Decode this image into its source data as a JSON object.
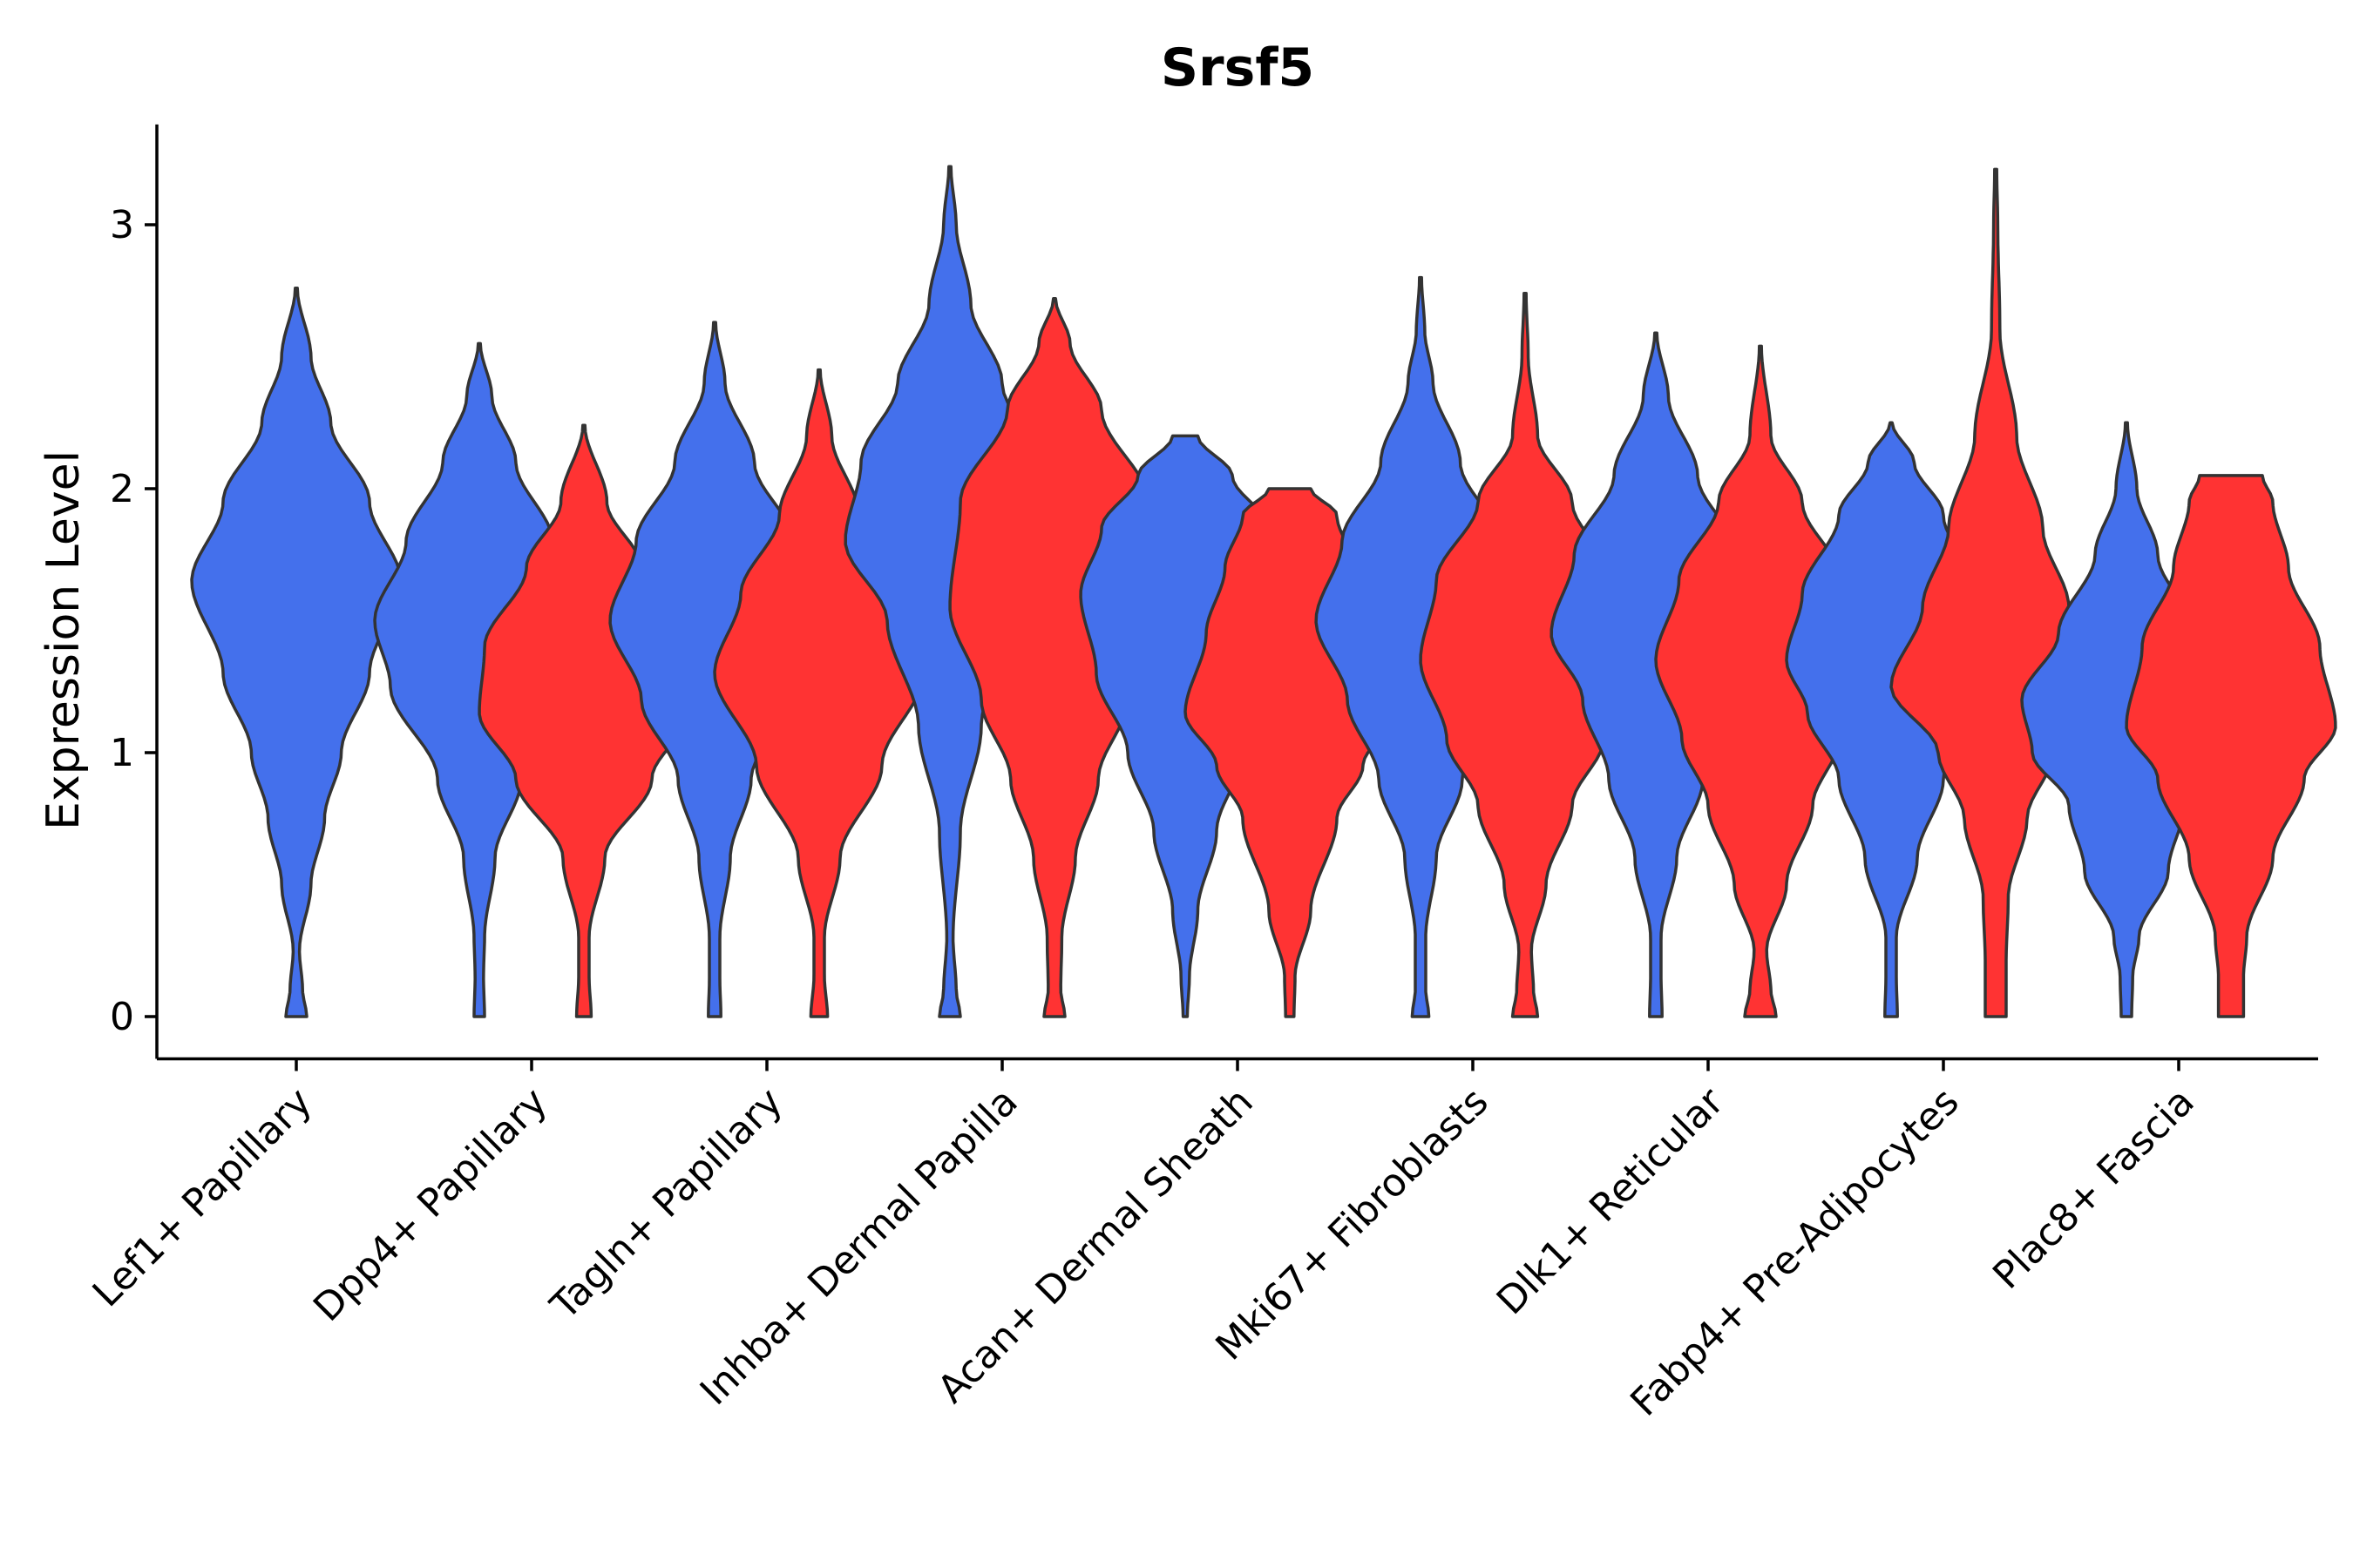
{
  "chart_data": {
    "type": "violin",
    "title": "Srsf5",
    "xlabel": "",
    "ylabel": "Expression Level",
    "ylim": [
      -0.16,
      3.38
    ],
    "yticks": [
      0,
      1,
      2,
      3
    ],
    "legend": "none",
    "grid": false,
    "colors": {
      "group_1": "#4470EC",
      "group_2": "#FF3333"
    },
    "categories": [
      "Lef1+ Papillary",
      "Dpp4+ Papillary",
      "Tagln+ Papillary",
      "Inhba+ Dermal Papilla",
      "Acan+ Dermal Sheath",
      "Mki67+ Fibroblasts",
      "Dlk1+ Reticular",
      "Fabp4+ Pre-Adipocytes",
      "Plac8+ Fascia"
    ],
    "violins": [
      {
        "category": "Lef1+ Papillary",
        "group": "group_1",
        "max": 2.76,
        "profile": [
          [
            0,
            0.1
          ],
          [
            0.1,
            0.06
          ],
          [
            0.25,
            0.03
          ],
          [
            0.5,
            0.14
          ],
          [
            0.75,
            0.27
          ],
          [
            1.0,
            0.43
          ],
          [
            1.3,
            0.7
          ],
          [
            1.65,
            1.0
          ],
          [
            1.95,
            0.7
          ],
          [
            2.25,
            0.33
          ],
          [
            2.5,
            0.14
          ],
          [
            2.76,
            0.01
          ]
        ]
      },
      {
        "category": "Dpp4+ Papillary",
        "group": "group_1",
        "max": 2.55,
        "profile": [
          [
            0,
            0.05
          ],
          [
            0.15,
            0.04
          ],
          [
            0.3,
            0.05
          ],
          [
            0.6,
            0.15
          ],
          [
            0.9,
            0.4
          ],
          [
            1.25,
            0.85
          ],
          [
            1.5,
            1.0
          ],
          [
            1.8,
            0.7
          ],
          [
            2.1,
            0.35
          ],
          [
            2.35,
            0.12
          ],
          [
            2.55,
            0.01
          ]
        ]
      },
      {
        "category": "Dpp4+ Papillary",
        "group": "group_2",
        "max": 2.24,
        "profile": [
          [
            0,
            0.07
          ],
          [
            0.15,
            0.05
          ],
          [
            0.3,
            0.05
          ],
          [
            0.6,
            0.2
          ],
          [
            0.9,
            0.65
          ],
          [
            1.15,
            1.0
          ],
          [
            1.4,
            0.95
          ],
          [
            1.7,
            0.55
          ],
          [
            1.95,
            0.22
          ],
          [
            2.24,
            0.01
          ]
        ]
      },
      {
        "category": "Tagln+ Papillary",
        "group": "group_1",
        "max": 2.63,
        "profile": [
          [
            0,
            0.06
          ],
          [
            0.15,
            0.05
          ],
          [
            0.3,
            0.05
          ],
          [
            0.6,
            0.15
          ],
          [
            0.9,
            0.35
          ],
          [
            1.2,
            0.7
          ],
          [
            1.5,
            1.0
          ],
          [
            1.8,
            0.75
          ],
          [
            2.1,
            0.38
          ],
          [
            2.4,
            0.1
          ],
          [
            2.63,
            0.01
          ]
        ]
      },
      {
        "category": "Tagln+ Papillary",
        "group": "group_2",
        "max": 2.45,
        "profile": [
          [
            0,
            0.08
          ],
          [
            0.15,
            0.05
          ],
          [
            0.3,
            0.05
          ],
          [
            0.6,
            0.2
          ],
          [
            0.95,
            0.6
          ],
          [
            1.3,
            1.0
          ],
          [
            1.6,
            0.75
          ],
          [
            1.9,
            0.38
          ],
          [
            2.2,
            0.12
          ],
          [
            2.45,
            0.01
          ]
        ]
      },
      {
        "category": "Inhba+ Dermal Papilla",
        "group": "group_1",
        "max": 3.22,
        "profile": [
          [
            0,
            0.1
          ],
          [
            0.1,
            0.06
          ],
          [
            0.3,
            0.03
          ],
          [
            0.7,
            0.1
          ],
          [
            1.1,
            0.3
          ],
          [
            1.5,
            0.6
          ],
          [
            1.8,
            1.0
          ],
          [
            2.1,
            0.85
          ],
          [
            2.4,
            0.5
          ],
          [
            2.7,
            0.2
          ],
          [
            3.0,
            0.06
          ],
          [
            3.22,
            0.01
          ]
        ]
      },
      {
        "category": "Inhba+ Dermal Papilla",
        "group": "group_2",
        "max": 2.72,
        "profile": [
          [
            0,
            0.1
          ],
          [
            0.1,
            0.06
          ],
          [
            0.3,
            0.07
          ],
          [
            0.6,
            0.2
          ],
          [
            0.9,
            0.42
          ],
          [
            1.2,
            0.7
          ],
          [
            1.55,
            1.0
          ],
          [
            1.95,
            0.9
          ],
          [
            2.3,
            0.45
          ],
          [
            2.55,
            0.15
          ],
          [
            2.72,
            0.01
          ]
        ]
      },
      {
        "category": "Acan+ Dermal Sheath",
        "group": "group_1",
        "max": 2.2,
        "profile": [
          [
            0,
            0.02
          ],
          [
            0.15,
            0.04
          ],
          [
            0.4,
            0.12
          ],
          [
            0.7,
            0.3
          ],
          [
            1.0,
            0.55
          ],
          [
            1.3,
            0.85
          ],
          [
            1.6,
            1.0
          ],
          [
            1.85,
            0.8
          ],
          [
            2.05,
            0.45
          ],
          [
            2.2,
            0.12
          ]
        ]
      },
      {
        "category": "Acan+ Dermal Sheath",
        "group": "group_2",
        "max": 2.0,
        "profile": [
          [
            0,
            0.04
          ],
          [
            0.15,
            0.05
          ],
          [
            0.4,
            0.2
          ],
          [
            0.75,
            0.45
          ],
          [
            0.95,
            0.7
          ],
          [
            1.15,
            1.0
          ],
          [
            1.45,
            0.8
          ],
          [
            1.7,
            0.62
          ],
          [
            1.9,
            0.45
          ],
          [
            2.0,
            0.2
          ]
        ]
      },
      {
        "category": "Mki67+ Fibroblasts",
        "group": "group_1",
        "max": 2.8,
        "profile": [
          [
            0,
            0.08
          ],
          [
            0.1,
            0.05
          ],
          [
            0.3,
            0.05
          ],
          [
            0.6,
            0.15
          ],
          [
            0.9,
            0.4
          ],
          [
            1.2,
            0.7
          ],
          [
            1.5,
            1.0
          ],
          [
            1.8,
            0.75
          ],
          [
            2.1,
            0.38
          ],
          [
            2.4,
            0.12
          ],
          [
            2.6,
            0.04
          ],
          [
            2.8,
            0.01
          ]
        ]
      },
      {
        "category": "Mki67+ Fibroblasts",
        "group": "group_2",
        "max": 2.74,
        "profile": [
          [
            0,
            0.12
          ],
          [
            0.1,
            0.08
          ],
          [
            0.25,
            0.06
          ],
          [
            0.5,
            0.2
          ],
          [
            0.8,
            0.45
          ],
          [
            1.05,
            0.75
          ],
          [
            1.35,
            1.0
          ],
          [
            1.65,
            0.85
          ],
          [
            1.95,
            0.45
          ],
          [
            2.2,
            0.12
          ],
          [
            2.5,
            0.03
          ],
          [
            2.74,
            0.01
          ]
        ]
      },
      {
        "category": "Dlk1+ Reticular",
        "group": "group_1",
        "max": 2.59,
        "profile": [
          [
            0,
            0.06
          ],
          [
            0.15,
            0.05
          ],
          [
            0.3,
            0.05
          ],
          [
            0.6,
            0.2
          ],
          [
            0.9,
            0.45
          ],
          [
            1.2,
            0.7
          ],
          [
            1.45,
            1.0
          ],
          [
            1.75,
            0.78
          ],
          [
            2.05,
            0.4
          ],
          [
            2.35,
            0.12
          ],
          [
            2.59,
            0.01
          ]
        ]
      },
      {
        "category": "Dlk1+ Reticular",
        "group": "group_2",
        "max": 2.54,
        "profile": [
          [
            0,
            0.15
          ],
          [
            0.1,
            0.1
          ],
          [
            0.25,
            0.06
          ],
          [
            0.5,
            0.25
          ],
          [
            0.8,
            0.5
          ],
          [
            1.05,
            0.75
          ],
          [
            1.35,
            1.0
          ],
          [
            1.65,
            0.78
          ],
          [
            1.95,
            0.4
          ],
          [
            2.2,
            0.1
          ],
          [
            2.54,
            0.01
          ]
        ]
      },
      {
        "category": "Fabp4+ Pre-Adipocytes",
        "group": "group_1",
        "max": 2.25,
        "profile": [
          [
            0,
            0.06
          ],
          [
            0.15,
            0.05
          ],
          [
            0.3,
            0.05
          ],
          [
            0.6,
            0.25
          ],
          [
            0.9,
            0.5
          ],
          [
            1.15,
            0.8
          ],
          [
            1.35,
            1.0
          ],
          [
            1.6,
            0.85
          ],
          [
            1.9,
            0.5
          ],
          [
            2.1,
            0.22
          ],
          [
            2.25,
            0.01
          ]
        ]
      },
      {
        "category": "Fabp4+ Pre-Adipocytes",
        "group": "group_2",
        "max": 3.21,
        "profile": [
          [
            0,
            0.1
          ],
          [
            0.2,
            0.1
          ],
          [
            0.45,
            0.12
          ],
          [
            0.75,
            0.3
          ],
          [
            1.0,
            0.55
          ],
          [
            1.25,
            1.0
          ],
          [
            1.55,
            0.7
          ],
          [
            1.85,
            0.45
          ],
          [
            2.2,
            0.2
          ],
          [
            2.6,
            0.04
          ],
          [
            3.0,
            0.02
          ],
          [
            3.21,
            0.01
          ]
        ]
      },
      {
        "category": "Plac8+ Fascia",
        "group": "group_1",
        "max": 2.25,
        "profile": [
          [
            0,
            0.05
          ],
          [
            0.15,
            0.06
          ],
          [
            0.3,
            0.12
          ],
          [
            0.55,
            0.4
          ],
          [
            0.8,
            0.55
          ],
          [
            1.0,
            0.9
          ],
          [
            1.2,
            1.0
          ],
          [
            1.45,
            0.65
          ],
          [
            1.75,
            0.3
          ],
          [
            2.0,
            0.1
          ],
          [
            2.25,
            0.01
          ]
        ]
      },
      {
        "category": "Plac8+ Fascia",
        "group": "group_2",
        "max": 2.05,
        "profile": [
          [
            0,
            0.12
          ],
          [
            0.15,
            0.12
          ],
          [
            0.3,
            0.15
          ],
          [
            0.6,
            0.4
          ],
          [
            0.9,
            0.7
          ],
          [
            1.1,
            1.0
          ],
          [
            1.4,
            0.85
          ],
          [
            1.7,
            0.55
          ],
          [
            1.95,
            0.4
          ],
          [
            2.05,
            0.3
          ]
        ]
      }
    ]
  }
}
